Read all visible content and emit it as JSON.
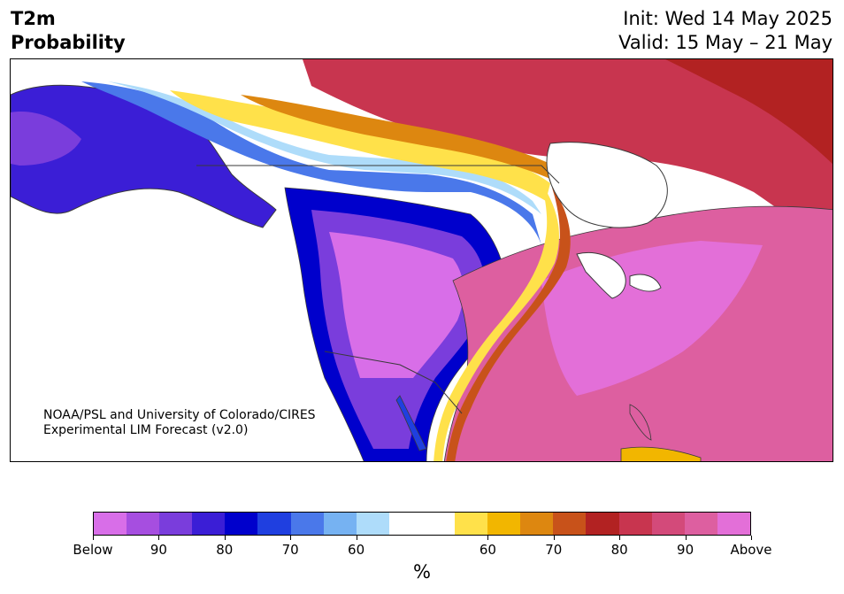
{
  "header": {
    "title_line1": "T2m",
    "title_line2": "Probability",
    "init_text": "Init: Wed 14 May 2025",
    "valid_text": "Valid: 15 May – 21 May"
  },
  "credit": {
    "line1": "NOAA/PSL and University of Colorado/CIRES",
    "line2": "Experimental LIM Forecast (v2.0)"
  },
  "colorbar": {
    "colors": [
      "#d86ee8",
      "#a64ee0",
      "#7a3ddc",
      "#3b1ed6",
      "#0000cc",
      "#1f3fe0",
      "#4a78ea",
      "#76b2f2",
      "#aedcfa",
      "#ffffff",
      "#ffffff",
      "#ffe14a",
      "#f2b600",
      "#dd8710",
      "#c8521a",
      "#b22222",
      "#c8354f",
      "#d34a7a",
      "#dd5fa0",
      "#e36fd8"
    ],
    "tick_labels": [
      "Below",
      "90",
      "80",
      "70",
      "60",
      "60",
      "70",
      "80",
      "90",
      "Above"
    ],
    "unit": "%"
  },
  "map": {
    "region": "North America",
    "field": "2 m temperature tercile probability",
    "ocean_color": "#ffffff",
    "border_color": "#3a3a3a"
  }
}
